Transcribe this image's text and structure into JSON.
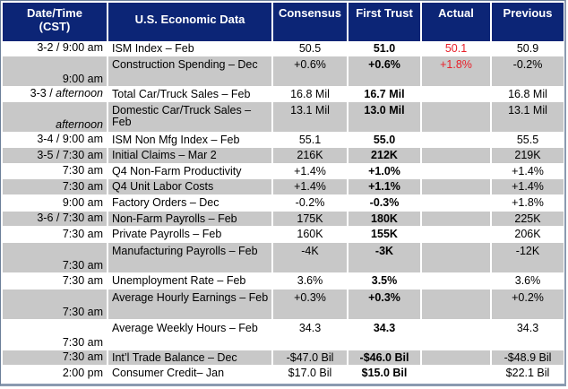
{
  "headers": {
    "date_line1": "Date/Time",
    "date_line2": "(CST)",
    "indicator": "U.S. Economic Data",
    "consensus": "Consensus",
    "first_trust": "First Trust",
    "actual": "Actual",
    "previous": "Previous"
  },
  "rows": [
    {
      "date_prefix": "3-2 / 9:00 am",
      "date_italic": "",
      "indicator": "ISM Index – Feb",
      "consensus": "50.5",
      "first_trust": "51.0",
      "actual": "50.1",
      "previous": "50.9"
    },
    {
      "date_prefix": "9:00 am",
      "date_italic": "",
      "indicator": "Construction Spending – Dec",
      "consensus": "+0.6%",
      "first_trust": "+0.6%",
      "actual": "+1.8%",
      "previous": "-0.2%"
    },
    {
      "date_prefix": "3-3 / ",
      "date_italic": "afternoon",
      "indicator": "Total Car/Truck Sales – Feb",
      "consensus": "16.8 Mil",
      "first_trust": "16.7 Mil",
      "actual": "",
      "previous": "16.8 Mil"
    },
    {
      "date_prefix": "",
      "date_italic": "afternoon",
      "indicator": "Domestic Car/Truck Sales – Feb",
      "consensus": "13.1 Mil",
      "first_trust": "13.0 Mil",
      "actual": "",
      "previous": "13.1 Mil"
    },
    {
      "date_prefix": "3-4 / 9:00 am",
      "date_italic": "",
      "indicator": "ISM Non Mfg Index – Feb",
      "consensus": "55.1",
      "first_trust": "55.0",
      "actual": "",
      "previous": "55.5"
    },
    {
      "date_prefix": "3-5 / 7:30 am",
      "date_italic": "",
      "indicator": "Initial Claims – Mar 2",
      "consensus": "216K",
      "first_trust": "212K",
      "actual": "",
      "previous": "219K"
    },
    {
      "date_prefix": "7:30 am",
      "date_italic": "",
      "indicator": "Q4 Non-Farm Productivity",
      "consensus": "+1.4%",
      "first_trust": "+1.0%",
      "actual": "",
      "previous": "+1.4%"
    },
    {
      "date_prefix": "7:30 am",
      "date_italic": "",
      "indicator": "Q4 Unit Labor Costs",
      "consensus": "+1.4%",
      "first_trust": "+1.1%",
      "actual": "",
      "previous": "+1.4%"
    },
    {
      "date_prefix": "9:00 am",
      "date_italic": "",
      "indicator": "Factory Orders – Dec",
      "consensus": "-0.2%",
      "first_trust": "-0.3%",
      "actual": "",
      "previous": "+1.8%"
    },
    {
      "date_prefix": "3-6 / 7:30 am",
      "date_italic": "",
      "indicator": "Non-Farm Payrolls – Feb",
      "consensus": "175K",
      "first_trust": "180K",
      "actual": "",
      "previous": "225K"
    },
    {
      "date_prefix": "7:30 am",
      "date_italic": "",
      "indicator": "Private Payrolls – Feb",
      "consensus": "160K",
      "first_trust": "155K",
      "actual": "",
      "previous": "206K"
    },
    {
      "date_prefix": "7:30 am",
      "date_italic": "",
      "indicator": "Manufacturing Payrolls – Feb",
      "consensus": "-4K",
      "first_trust": "-3K",
      "actual": "",
      "previous": "-12K"
    },
    {
      "date_prefix": "7:30 am",
      "date_italic": "",
      "indicator": "Unemployment Rate – Feb",
      "consensus": "3.6%",
      "first_trust": "3.5%",
      "actual": "",
      "previous": "3.6%"
    },
    {
      "date_prefix": "7:30 am",
      "date_italic": "",
      "indicator": "Average Hourly Earnings – Feb",
      "consensus": "+0.3%",
      "first_trust": "+0.3%",
      "actual": "",
      "previous": "+0.2%"
    },
    {
      "date_prefix": "7:30 am",
      "date_italic": "",
      "indicator": "Average Weekly Hours – Feb",
      "consensus": "34.3",
      "first_trust": "34.3",
      "actual": "",
      "previous": "34.3"
    },
    {
      "date_prefix": "7:30 am",
      "date_italic": "",
      "indicator": "Int’l Trade Balance – Dec",
      "consensus": "-$47.0 Bil",
      "first_trust": "-$46.0 Bil",
      "actual": "",
      "previous": "-$48.9 Bil"
    },
    {
      "date_prefix": "2:00 pm",
      "date_italic": "",
      "indicator": "Consumer Credit– Jan",
      "consensus": "$17.0 Bil",
      "first_trust": "$15.0 Bil",
      "actual": "",
      "previous": "$22.1 Bil"
    }
  ]
}
